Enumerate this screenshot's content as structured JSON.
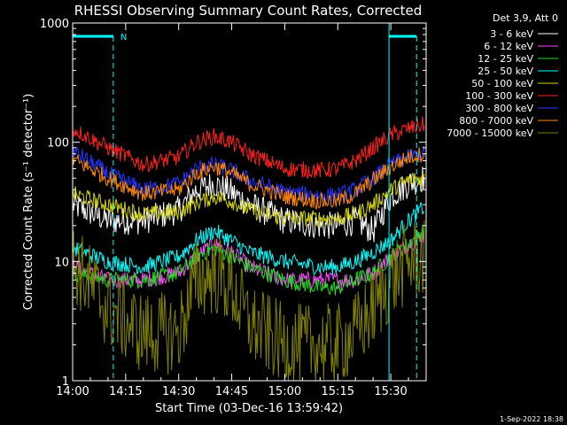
{
  "chart_data": {
    "type": "line",
    "title": "RHESSI Observing Summary Count Rates, Corrected",
    "ylabel": "Corrected Count Rate (s⁻¹ detector⁻¹)",
    "xlabel": "Start Time (03-Dec-16 13:59:42)",
    "footer": "1-Sep-2022 18:38",
    "legend_title": "Det 3,9, Att 0",
    "x_ticks": [
      "14:00",
      "14:15",
      "14:30",
      "14:45",
      "15:00",
      "15:15",
      "15:30"
    ],
    "y_ticks": [
      "1",
      "10",
      "100",
      "1000"
    ],
    "ylim": [
      1,
      1000
    ],
    "yscale": "log",
    "xlim_minutes": [
      0,
      100
    ],
    "x_unit": "minutes after 14:00",
    "x": [
      0,
      10,
      20,
      30,
      35,
      40,
      45,
      50,
      60,
      70,
      75,
      80,
      85,
      90,
      95,
      99
    ],
    "series": [
      {
        "name": "3 - 6 keV",
        "color": "#ffffff",
        "values": [
          30,
          22,
          22,
          27,
          40,
          45,
          38,
          30,
          22,
          20,
          20,
          22,
          18,
          35,
          45,
          50
        ]
      },
      {
        "name": "6 - 12 keV",
        "color": "#ff44ff",
        "values": [
          9,
          7,
          7,
          8,
          11,
          14,
          12,
          9,
          7,
          7,
          7,
          7,
          8,
          11,
          14,
          16
        ]
      },
      {
        "name": "12 - 25 keV",
        "color": "#22dd22",
        "values": [
          8,
          7,
          7,
          8,
          11,
          13,
          11,
          9,
          7,
          6,
          6,
          7,
          8,
          11,
          14,
          18
        ]
      },
      {
        "name": "25 - 50 keV",
        "color": "#00ffff",
        "values": [
          13,
          10,
          9,
          11,
          15,
          18,
          15,
          12,
          10,
          9,
          9,
          10,
          12,
          15,
          22,
          28
        ]
      },
      {
        "name": "50 - 100 keV",
        "color": "#d4d400",
        "values": [
          37,
          30,
          25,
          26,
          31,
          35,
          32,
          27,
          23,
          23,
          23,
          25,
          30,
          40,
          48,
          50
        ]
      },
      {
        "name": "100 - 300 keV",
        "color": "#ff2020",
        "values": [
          130,
          90,
          65,
          75,
          100,
          112,
          100,
          80,
          60,
          58,
          60,
          70,
          90,
          115,
          130,
          140
        ]
      },
      {
        "name": "300 - 800 keV",
        "color": "#2233ff",
        "values": [
          85,
          55,
          40,
          45,
          60,
          65,
          58,
          48,
          38,
          36,
          36,
          40,
          50,
          65,
          75,
          80
        ]
      },
      {
        "name": "800 - 7000 keV",
        "color": "#ff8800",
        "values": [
          72,
          50,
          37,
          40,
          55,
          63,
          55,
          45,
          35,
          32,
          32,
          37,
          48,
          62,
          75,
          80
        ]
      },
      {
        "name": "7000 - 15000 keV",
        "color": "#808000",
        "values": [
          10,
          4,
          2.5,
          2.5,
          7,
          8,
          6,
          3,
          2,
          2,
          2,
          2.5,
          4,
          7,
          10,
          11
        ]
      }
    ],
    "night_marker": "N"
  }
}
